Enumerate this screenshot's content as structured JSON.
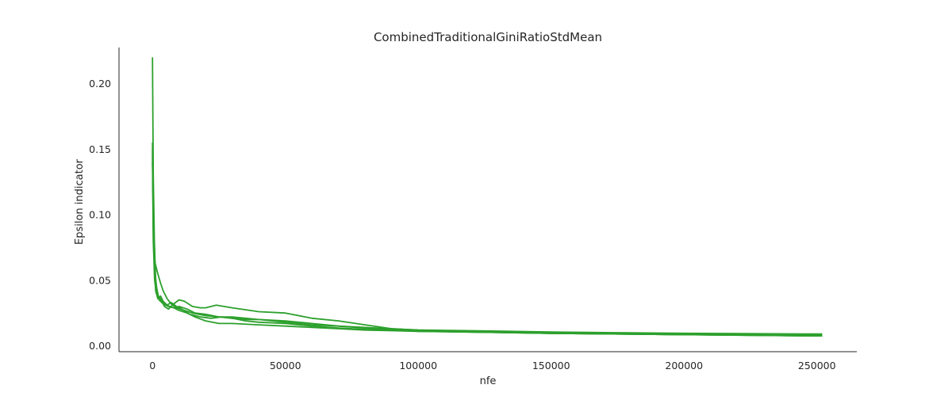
{
  "chart_data": {
    "type": "line",
    "title": "CombinedTraditionalGiniRatioStdMean",
    "xlabel": "nfe",
    "ylabel": "Epsilon indicator",
    "xlim": [
      -12600,
      265000
    ],
    "ylim": [
      -0.0045,
      0.2275
    ],
    "xticks": [
      0,
      50000,
      100000,
      150000,
      200000,
      250000
    ],
    "xtick_labels": [
      "0",
      "50000",
      "100000",
      "150000",
      "200000",
      "250000"
    ],
    "yticks": [
      0.0,
      0.05,
      0.1,
      0.15,
      0.2
    ],
    "ytick_labels": [
      "0.00",
      "0.05",
      "0.10",
      "0.15",
      "0.20"
    ],
    "grid": false,
    "legend": "none",
    "line_color": "#2ca02c",
    "series": [
      {
        "x": [
          0,
          300,
          700,
          1200,
          2000,
          3000,
          4500,
          6000,
          8000,
          10000,
          12000,
          15000,
          18000,
          20000,
          24000,
          30000,
          40000,
          50000,
          60000,
          70000,
          80000,
          90000,
          100000,
          120000,
          150000,
          200000,
          252000
        ],
        "y": [
          0.22,
          0.13,
          0.08,
          0.05,
          0.038,
          0.036,
          0.03,
          0.028,
          0.032,
          0.035,
          0.034,
          0.03,
          0.029,
          0.029,
          0.031,
          0.029,
          0.026,
          0.025,
          0.021,
          0.019,
          0.016,
          0.013,
          0.012,
          0.011,
          0.0095,
          0.0085,
          0.008
        ]
      },
      {
        "x": [
          0,
          300,
          800,
          1500,
          2500,
          4000,
          6000,
          8000,
          10000,
          13000,
          16000,
          20000,
          25000,
          30000,
          40000,
          50000,
          60000,
          70000,
          80000,
          90000,
          100000,
          120000,
          150000,
          200000,
          252000
        ],
        "y": [
          0.155,
          0.09,
          0.06,
          0.045,
          0.035,
          0.032,
          0.03,
          0.029,
          0.027,
          0.025,
          0.022,
          0.019,
          0.017,
          0.017,
          0.016,
          0.015,
          0.014,
          0.013,
          0.012,
          0.0115,
          0.011,
          0.0105,
          0.0095,
          0.0085,
          0.0075
        ]
      },
      {
        "x": [
          0,
          400,
          1000,
          2000,
          3000,
          4000,
          5500,
          7000,
          9000,
          12000,
          15000,
          20000,
          25000,
          30000,
          35000,
          40000,
          50000,
          60000,
          70000,
          80000,
          90000,
          100000,
          120000,
          150000,
          200000,
          252000
        ],
        "y": [
          0.14,
          0.075,
          0.063,
          0.055,
          0.048,
          0.042,
          0.036,
          0.032,
          0.029,
          0.027,
          0.025,
          0.023,
          0.022,
          0.022,
          0.021,
          0.02,
          0.019,
          0.017,
          0.015,
          0.014,
          0.013,
          0.012,
          0.0115,
          0.0105,
          0.0095,
          0.009
        ]
      },
      {
        "x": [
          0,
          300,
          700,
          1200,
          2000,
          3000,
          4000,
          5000,
          6500,
          8000,
          10000,
          13000,
          16000,
          20000,
          25000,
          30000,
          35000,
          40000,
          45000,
          50000,
          60000,
          70000,
          80000,
          90000,
          100000,
          120000,
          150000,
          200000,
          252000
        ],
        "y": [
          0.15,
          0.1,
          0.06,
          0.042,
          0.036,
          0.038,
          0.034,
          0.031,
          0.03,
          0.029,
          0.03,
          0.028,
          0.025,
          0.024,
          0.022,
          0.021,
          0.02,
          0.02,
          0.019,
          0.018,
          0.016,
          0.015,
          0.0135,
          0.012,
          0.011,
          0.0105,
          0.0095,
          0.0085,
          0.0075
        ]
      },
      {
        "x": [
          0,
          300,
          800,
          1500,
          2500,
          4000,
          5500,
          7000,
          9000,
          11000,
          14000,
          18000,
          22000,
          26000,
          30000,
          35000,
          40000,
          50000,
          60000,
          70000,
          80000,
          90000,
          100000,
          120000,
          150000,
          200000,
          252000
        ],
        "y": [
          0.145,
          0.08,
          0.05,
          0.04,
          0.035,
          0.034,
          0.031,
          0.033,
          0.03,
          0.028,
          0.024,
          0.022,
          0.021,
          0.022,
          0.021,
          0.019,
          0.018,
          0.017,
          0.015,
          0.0135,
          0.0125,
          0.012,
          0.0115,
          0.0105,
          0.0095,
          0.0085,
          0.0075
        ]
      }
    ]
  }
}
